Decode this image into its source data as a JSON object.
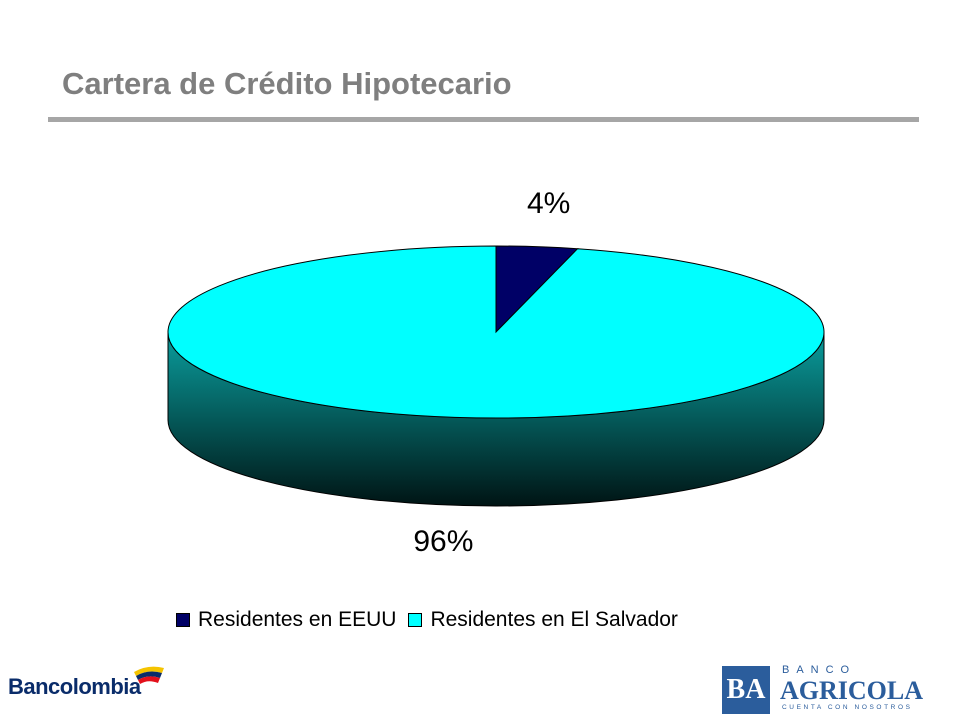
{
  "slide": {
    "title": "Cartera de Crédito Hipotecario"
  },
  "chart_data": {
    "type": "pie",
    "style": "3d",
    "categories": [
      "Residentes en EEUU",
      "Residentes en El Salvador"
    ],
    "values": [
      4,
      96
    ],
    "data_labels": [
      "4%",
      "96%"
    ],
    "colors": [
      "#000066",
      "#00ffff"
    ],
    "legend": "bottom"
  },
  "logos": {
    "left": {
      "name": "Bancolombia",
      "text": "Bancolombia",
      "icon": "bancolombia-flag-icon"
    },
    "right": {
      "name": "Banco Agrícola",
      "mark": "BA",
      "banco": "BANCO",
      "agricola": "AGRICOLA",
      "tagline": "CUENTA CON NOSOTROS",
      "color": "#2b5d9c"
    }
  }
}
